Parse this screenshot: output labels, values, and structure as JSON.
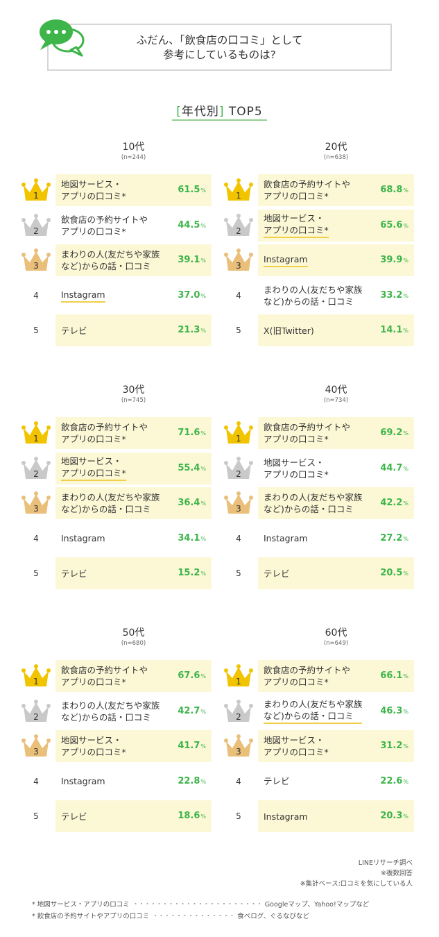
{
  "header": {
    "line1": "ふだん、「飲食店の口コミ」として",
    "line2": "参考にしているものは?"
  },
  "section": {
    "open_bracket": "[",
    "title": "年代別",
    "close_bracket": "]",
    "suffix": " TOP5"
  },
  "colors": {
    "accent_green": "#3db54a",
    "highlight_bg": "#fcf8d6",
    "underline_yellow": "#f0cf4a",
    "gold": "#f2c400",
    "silver": "#c9c9c9",
    "bronze": "#e9bf7a"
  },
  "chart_data": [
    {
      "type": "table",
      "title": "10代",
      "n": "(n=244)",
      "rows": [
        {
          "rank": "1",
          "label": "地図サービス・\nアプリの口コミ*",
          "value": "61.5",
          "underline": false,
          "highlight": true
        },
        {
          "rank": "2",
          "label": "飲食店の予約サイトや\nアプリの口コミ*",
          "value": "44.5",
          "underline": false,
          "highlight": false
        },
        {
          "rank": "3",
          "label": "まわりの人(友だちや家族\nなど)からの話・口コミ",
          "value": "39.1",
          "underline": false,
          "highlight": true
        },
        {
          "rank": "4",
          "label": "Instagram",
          "value": "37.0",
          "underline": true,
          "highlight": false
        },
        {
          "rank": "5",
          "label": "テレビ",
          "value": "21.3",
          "underline": false,
          "highlight": true
        }
      ]
    },
    {
      "type": "table",
      "title": "20代",
      "n": "(n=638)",
      "rows": [
        {
          "rank": "1",
          "label": "飲食店の予約サイトや\nアプリの口コミ*",
          "value": "68.8",
          "underline": false,
          "highlight": true
        },
        {
          "rank": "2",
          "label": "地図サービス・\nアプリの口コミ*",
          "value": "65.6",
          "underline": true,
          "highlight": true
        },
        {
          "rank": "3",
          "label": "Instagram",
          "value": "39.9",
          "underline": true,
          "highlight": true
        },
        {
          "rank": "4",
          "label": "まわりの人(友だちや家族\nなど)からの話・口コミ",
          "value": "33.2",
          "underline": false,
          "highlight": false
        },
        {
          "rank": "5",
          "label": "X(旧Twitter)",
          "value": "14.1",
          "underline": false,
          "highlight": true
        }
      ]
    },
    {
      "type": "table",
      "title": "30代",
      "n": "(n=745)",
      "rows": [
        {
          "rank": "1",
          "label": "飲食店の予約サイトや\nアプリの口コミ*",
          "value": "71.6",
          "underline": false,
          "highlight": true
        },
        {
          "rank": "2",
          "label": "地図サービス・\nアプリの口コミ*",
          "value": "55.4",
          "underline": true,
          "highlight": true
        },
        {
          "rank": "3",
          "label": "まわりの人(友だちや家族\nなど)からの話・口コミ",
          "value": "36.4",
          "underline": false,
          "highlight": true
        },
        {
          "rank": "4",
          "label": "Instagram",
          "value": "34.1",
          "underline": false,
          "highlight": false
        },
        {
          "rank": "5",
          "label": "テレビ",
          "value": "15.2",
          "underline": false,
          "highlight": true
        }
      ]
    },
    {
      "type": "table",
      "title": "40代",
      "n": "(n=734)",
      "rows": [
        {
          "rank": "1",
          "label": "飲食店の予約サイトや\nアプリの口コミ*",
          "value": "69.2",
          "underline": false,
          "highlight": true
        },
        {
          "rank": "2",
          "label": "地図サービス・\nアプリの口コミ*",
          "value": "44.7",
          "underline": false,
          "highlight": false
        },
        {
          "rank": "3",
          "label": "まわりの人(友だちや家族\nなど)からの話・口コミ",
          "value": "42.2",
          "underline": false,
          "highlight": true
        },
        {
          "rank": "4",
          "label": "Instagram",
          "value": "27.2",
          "underline": false,
          "highlight": false
        },
        {
          "rank": "5",
          "label": "テレビ",
          "value": "20.5",
          "underline": false,
          "highlight": true
        }
      ]
    },
    {
      "type": "table",
      "title": "50代",
      "n": "(n=680)",
      "rows": [
        {
          "rank": "1",
          "label": "飲食店の予約サイトや\nアプリの口コミ*",
          "value": "67.6",
          "underline": false,
          "highlight": true
        },
        {
          "rank": "2",
          "label": "まわりの人(友だちや家族\nなど)からの話・口コミ",
          "value": "42.7",
          "underline": false,
          "highlight": false
        },
        {
          "rank": "3",
          "label": "地図サービス・\nアプリの口コミ*",
          "value": "41.7",
          "underline": false,
          "highlight": true
        },
        {
          "rank": "4",
          "label": "Instagram",
          "value": "22.8",
          "underline": false,
          "highlight": false
        },
        {
          "rank": "5",
          "label": "テレビ",
          "value": "18.6",
          "underline": false,
          "highlight": true
        }
      ]
    },
    {
      "type": "table",
      "title": "60代",
      "n": "(n=649)",
      "rows": [
        {
          "rank": "1",
          "label": "飲食店の予約サイトや\nアプリの口コミ*",
          "value": "66.1",
          "underline": false,
          "highlight": true
        },
        {
          "rank": "2",
          "label": "まわりの人(友だちや家族\nなど)からの話・口コミ",
          "value": "46.3",
          "underline": true,
          "highlight": false
        },
        {
          "rank": "3",
          "label": "地図サービス・\nアプリの口コミ*",
          "value": "31.2",
          "underline": false,
          "highlight": true
        },
        {
          "rank": "4",
          "label": "テレビ",
          "value": "22.6",
          "underline": false,
          "highlight": false
        },
        {
          "rank": "5",
          "label": "Instagram",
          "value": "20.3",
          "underline": false,
          "highlight": true
        }
      ]
    }
  ],
  "percent_unit": "%",
  "notes": {
    "source": "LINEリサーチ調べ",
    "multiple": "※複数回答",
    "base": "※集計ベース:口コミを気にしている人"
  },
  "footnotes": [
    {
      "term": "* 地図サービス・アプリの口コミ",
      "examples": "Googleマップ、Yahoo!マップなど"
    },
    {
      "term": "* 飲食店の予約サイトやアプリの口コミ",
      "examples": "食べログ、ぐるなびなど"
    }
  ]
}
